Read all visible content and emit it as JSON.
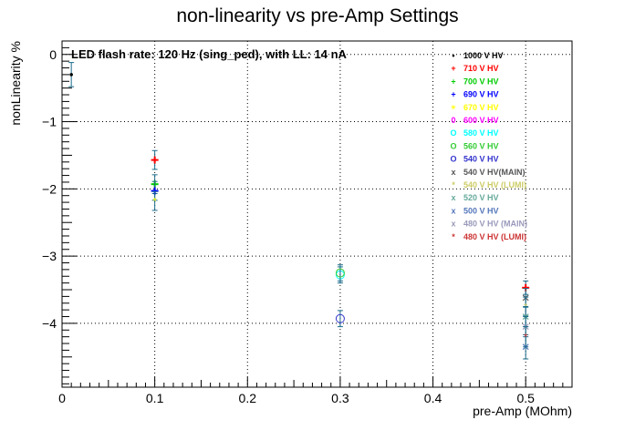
{
  "chart_data": {
    "type": "scatter",
    "title": "non-linearity vs pre-Amp Settings",
    "xlabel": "pre-Amp (MOhm)",
    "ylabel": "nonLinearity %",
    "xlim": [
      0,
      0.55
    ],
    "ylim": [
      -4.95,
      0.2
    ],
    "x_ticks": [
      "0",
      "0.1",
      "0.2",
      "0.3",
      "0.4",
      "0.5"
    ],
    "y_ticks": [
      "0",
      "−1",
      "−2",
      "−3",
      "−4"
    ],
    "grid": true,
    "annotation": "LED flash rate: 120 Hz  (sing_ped), with LL: 14 nA",
    "legend_position": "top-right",
    "series": [
      {
        "name": "1000 V HV",
        "marker": "•",
        "color": "#000000",
        "points": [
          {
            "x": 0.01,
            "y": -0.3,
            "err": 0.18
          }
        ]
      },
      {
        "name": "710 V HV",
        "marker": "+",
        "color": "#ff0000",
        "points": [
          {
            "x": 0.1,
            "y": -1.57,
            "err": 0.14
          },
          {
            "x": 0.5,
            "y": -3.47,
            "err": 0.1
          }
        ]
      },
      {
        "name": "700 V HV",
        "marker": "+",
        "color": "#00cc00",
        "points": [
          {
            "x": 0.1,
            "y": -1.93,
            "err": 0.14
          }
        ]
      },
      {
        "name": "690 V HV",
        "marker": "+",
        "color": "#0000ff",
        "points": [
          {
            "x": 0.1,
            "y": -2.03,
            "err": 0.14
          }
        ]
      },
      {
        "name": "670 V HV",
        "marker": "✴",
        "color": "#ffff00",
        "points": [
          {
            "x": 0.1,
            "y": -2.18,
            "err": 0.14
          }
        ]
      },
      {
        "name": "600 V HV",
        "marker": "0",
        "color": "#ff00ff",
        "points": []
      },
      {
        "name": "580 V HV",
        "marker": "O",
        "color": "#00ffff",
        "points": [
          {
            "x": 0.3,
            "y": -3.28,
            "err": 0.12
          }
        ]
      },
      {
        "name": "560 V HV",
        "marker": "O",
        "color": "#33cc33",
        "points": [
          {
            "x": 0.3,
            "y": -3.25,
            "err": 0.12
          }
        ]
      },
      {
        "name": "540 V HV",
        "marker": "O",
        "color": "#3333cc",
        "points": [
          {
            "x": 0.3,
            "y": -3.93,
            "err": 0.12
          }
        ]
      },
      {
        "name": "540 V HV(MAIN)",
        "marker": "x",
        "color": "#555555",
        "points": [
          {
            "x": 0.5,
            "y": -3.62,
            "err": 0.14
          }
        ]
      },
      {
        "name": "540 V HV (LUMI)",
        "marker": "*",
        "color": "#cccc66",
        "points": [
          {
            "x": 0.5,
            "y": -3.75,
            "err": 0.14
          }
        ]
      },
      {
        "name": "520 V HV",
        "marker": "x",
        "color": "#66aa99",
        "points": [
          {
            "x": 0.5,
            "y": -3.9,
            "err": 0.15
          }
        ]
      },
      {
        "name": "500 V HV",
        "marker": "x",
        "color": "#5577bb",
        "points": [
          {
            "x": 0.5,
            "y": -4.35,
            "err": 0.18
          }
        ]
      },
      {
        "name": "480 V HV (MAIN)",
        "marker": "x",
        "color": "#9999bb",
        "points": [
          {
            "x": 0.5,
            "y": -4.05,
            "err": 0.15
          }
        ]
      },
      {
        "name": "480 V HV (LUMI)",
        "marker": "*",
        "color": "#cc3333",
        "points": [
          {
            "x": 0.5,
            "y": -4.2,
            "err": 0.15
          }
        ]
      }
    ]
  }
}
